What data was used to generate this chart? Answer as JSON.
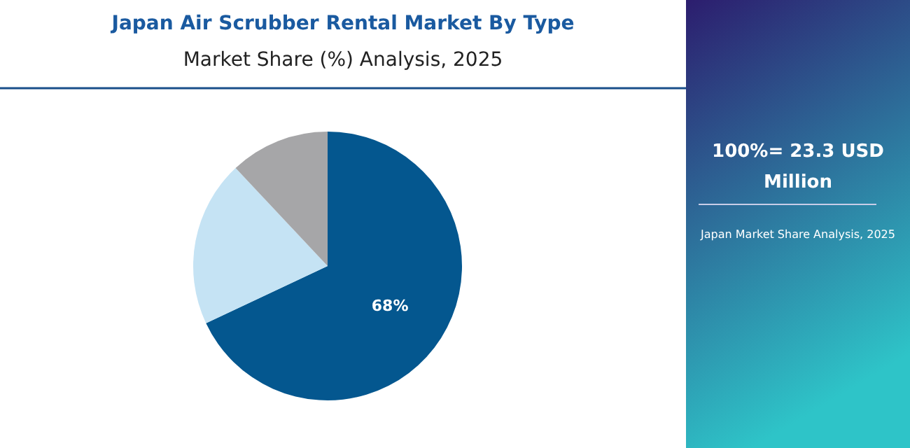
{
  "chart_data": {
    "type": "pie",
    "title": "Japan Air Scrubber Rental Market By Type",
    "subtitle": "Market Share (%) Analysis, 2025",
    "categories": [
      null,
      null,
      null
    ],
    "values": [
      68,
      20,
      12
    ],
    "colors": [
      "#04578f",
      "#c5e3f4",
      "#a6a6a8"
    ],
    "value_labels": [
      "68%",
      null,
      null
    ],
    "annotations": [
      "100%= 23.3 USD Million",
      "Japan Market Share Analysis, 2025"
    ]
  }
}
